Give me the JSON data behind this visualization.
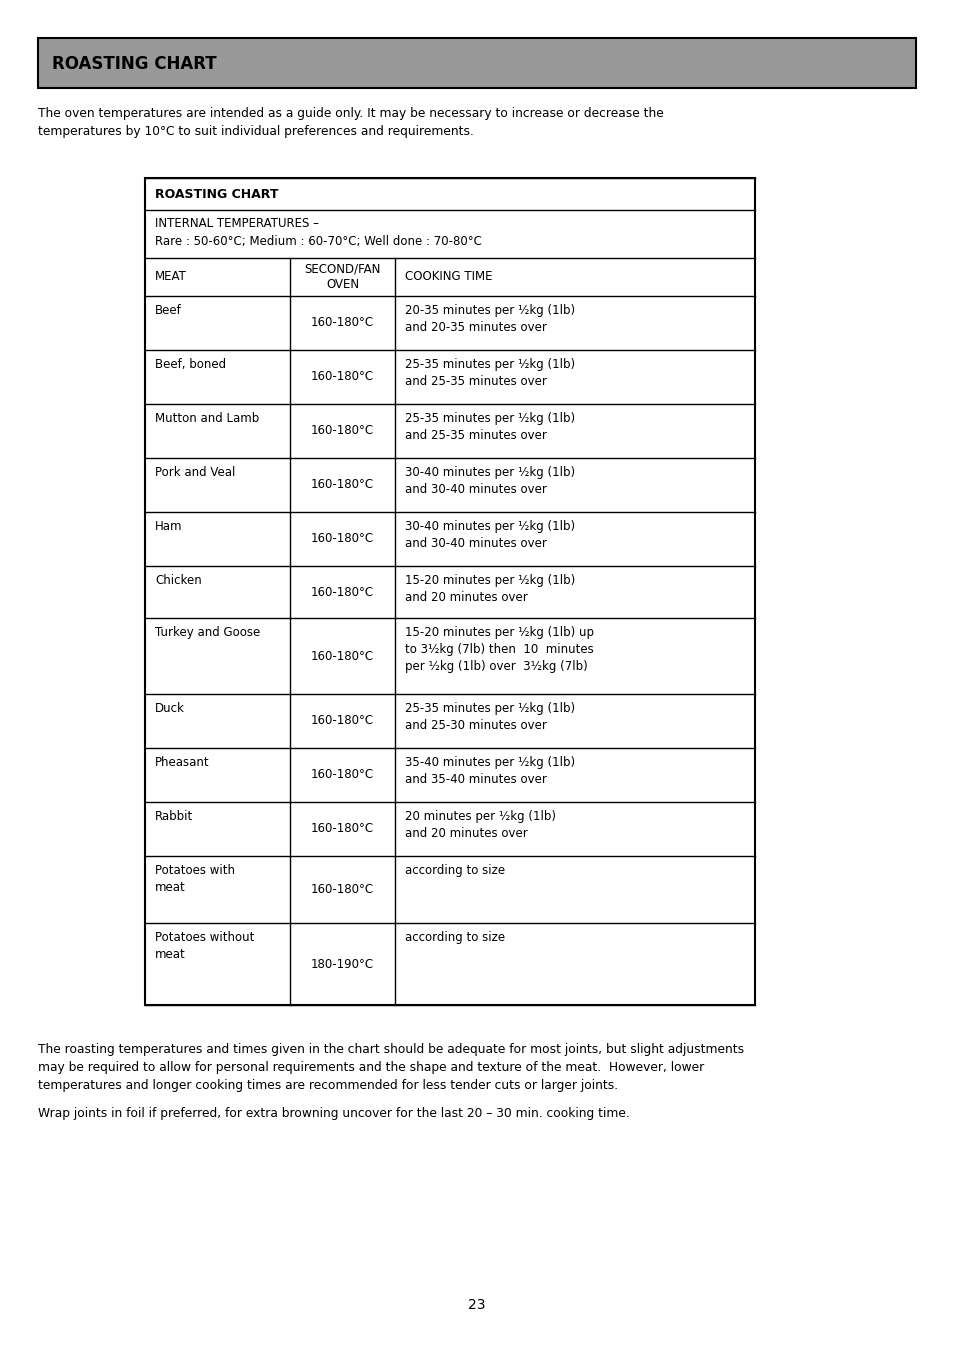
{
  "page_title": "ROASTING CHART",
  "header_bg": "#999999",
  "intro_line1": "The oven temperatures are intended as a guide only. It may be necessary to increase or decrease the",
  "intro_line2": "temperatures by 10°C to suit individual preferences and requirements.",
  "table_title": "ROASTING CHART",
  "internal_temps_line1": "INTERNAL TEMPERATURES –",
  "internal_temps_line2": "Rare : 50-60°C; Medium : 60-70°C; Well done : 70-80°C",
  "col_headers": [
    "MEAT",
    "SECOND/FAN\nOVEN",
    "COOKING TIME"
  ],
  "rows": [
    [
      "Beef",
      "160-180°C",
      "20-35 minutes per ½kg (1lb)\nand 20-35 minutes over"
    ],
    [
      "Beef, boned",
      "160-180°C",
      "25-35 minutes per ½kg (1lb)\nand 25-35 minutes over"
    ],
    [
      "Mutton and Lamb",
      "160-180°C",
      "25-35 minutes per ½kg (1lb)\nand 25-35 minutes over"
    ],
    [
      "Pork and Veal",
      "160-180°C",
      "30-40 minutes per ½kg (1lb)\nand 30-40 minutes over"
    ],
    [
      "Ham",
      "160-180°C",
      "30-40 minutes per ½kg (1lb)\nand 30-40 minutes over"
    ],
    [
      "Chicken",
      "160-180°C",
      "15-20 minutes per ½kg (1lb)\nand 20 minutes over"
    ],
    [
      "Turkey and Goose",
      "160-180°C",
      "15-20 minutes per ½kg (1lb) up\nto 3½kg (7lb) then  10  minutes\nper ½kg (1lb) over  3½kg (7lb)"
    ],
    [
      "Duck",
      "160-180°C",
      "25-35 minutes per ½kg (1lb)\nand 25-30 minutes over"
    ],
    [
      "Pheasant",
      "160-180°C",
      "35-40 minutes per ½kg (1lb)\nand 35-40 minutes over"
    ],
    [
      "Rabbit",
      "160-180°C",
      "20 minutes per ½kg (1lb)\nand 20 minutes over"
    ],
    [
      "Potatoes with\nmeat",
      "160-180°C",
      "according to size"
    ],
    [
      "Potatoes without\nmeat",
      "180-190°C",
      "according to size"
    ]
  ],
  "footer_text1": "The roasting temperatures and times given in the chart should be adequate for most joints, but slight adjustments",
  "footer_text2": "may be required to allow for personal requirements and the shape and texture of the meat.  However, lower",
  "footer_text3": "temperatures and longer cooking times are recommended for less tender cuts or larger joints.",
  "footer_text4": "Wrap joints in foil if preferred, for extra browning uncover for the last 20 – 30 min. cooking time.",
  "page_number": "23",
  "bg_color": "#ffffff"
}
